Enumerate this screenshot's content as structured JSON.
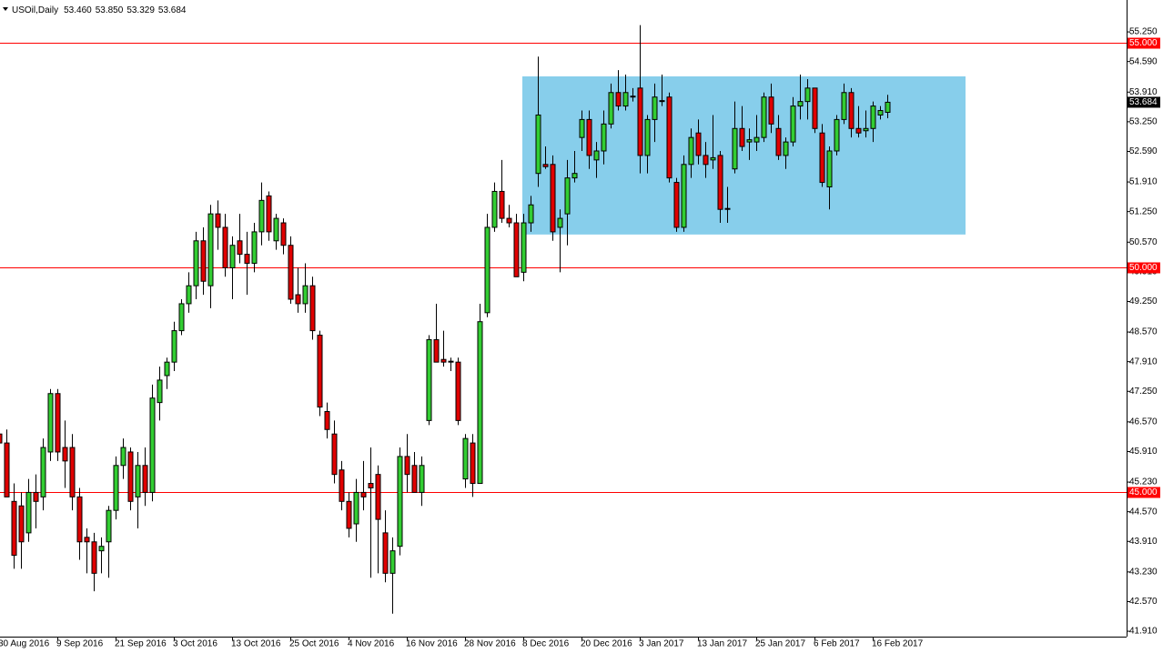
{
  "chart_data": {
    "type": "candlestick",
    "title": "USOil,Daily",
    "ohlc_labels": [
      "53.460",
      "53.850",
      "53.329",
      "53.684"
    ],
    "categories": [
      "30 Aug 2016",
      null,
      null,
      null,
      null,
      null,
      null,
      null,
      "9 Sep 2016",
      null,
      null,
      null,
      null,
      null,
      null,
      null,
      "21 Sep 2016",
      null,
      null,
      null,
      null,
      null,
      null,
      null,
      "3 Oct 2016",
      null,
      null,
      null,
      null,
      null,
      null,
      null,
      "13 Oct 2016",
      null,
      null,
      null,
      null,
      null,
      null,
      null,
      "25 Oct 2016",
      null,
      null,
      null,
      null,
      null,
      null,
      null,
      "4 Nov 2016",
      null,
      null,
      null,
      null,
      null,
      null,
      null,
      "16 Nov 2016",
      null,
      null,
      null,
      null,
      null,
      null,
      null,
      "28 Nov 2016",
      null,
      null,
      null,
      null,
      null,
      null,
      null,
      "8 Dec 2016",
      null,
      null,
      null,
      null,
      null,
      null,
      null,
      "20 Dec 2016",
      null,
      null,
      null,
      null,
      null,
      null,
      null,
      "3 Jan 2017",
      null,
      null,
      null,
      null,
      null,
      null,
      null,
      "13 Jan 2017",
      null,
      null,
      null,
      null,
      null,
      null,
      null,
      "25 Jan 2017",
      null,
      null,
      null,
      null,
      null,
      null,
      null,
      "6 Feb 2017",
      null,
      null,
      null,
      null,
      null,
      null,
      null,
      "16 Feb 2017",
      null,
      null
    ],
    "open": [
      46.3,
      46.1,
      44.8,
      44.7,
      44.1,
      45.0,
      44.9,
      45.9,
      47.2,
      46.0,
      46.0,
      44.9,
      44.0,
      43.9,
      43.7,
      43.9,
      44.6,
      45.6,
      45.9,
      44.9,
      45.6,
      45.0,
      47.0,
      47.6,
      47.9,
      48.6,
      49.2,
      49.6,
      50.6,
      49.6,
      51.2,
      50.9,
      50.0,
      50.6,
      50.3,
      50.1,
      50.8,
      51.6,
      50.6,
      51.0,
      50.5,
      49.4,
      49.2,
      49.6,
      48.5,
      46.8,
      46.3,
      45.5,
      44.8,
      44.3,
      45.0,
      45.2,
      45.4,
      44.1,
      43.2,
      43.8,
      45.8,
      45.6,
      45.0,
      46.6,
      48.4,
      47.96,
      47.9,
      47.9,
      45.3,
      46.1,
      45.2,
      49.0,
      50.9,
      51.7,
      51.1,
      51.0,
      49.9,
      51.0,
      52.1,
      52.3,
      52.3,
      50.9,
      51.2,
      52.0,
      52.9,
      53.3,
      52.4,
      52.6,
      53.2,
      53.9,
      53.6,
      53.8,
      54.0,
      52.5,
      53.3,
      53.7,
      53.8,
      51.9,
      50.9,
      52.3,
      53.0,
      52.5,
      52.4,
      52.5,
      51.3,
      52.2,
      53.1,
      52.8,
      52.8,
      52.9,
      53.8,
      53.1,
      52.5,
      52.8,
      53.6,
      53.7,
      54.0,
      53.0,
      51.8,
      52.6,
      53.3,
      53.9,
      53.1,
      53.05,
      53.1,
      53.4,
      53.46
    ],
    "high": [
      46.6,
      46.4,
      45.2,
      45.0,
      45.3,
      45.4,
      46.2,
      47.3,
      47.3,
      46.6,
      46.3,
      45.1,
      44.2,
      44.1,
      44.0,
      44.7,
      45.8,
      46.2,
      46.0,
      45.9,
      46.0,
      47.4,
      47.8,
      48.0,
      48.8,
      49.3,
      49.9,
      50.8,
      50.9,
      51.4,
      51.5,
      51.2,
      50.7,
      51.2,
      50.8,
      51.0,
      51.9,
      51.7,
      51.2,
      51.1,
      50.7,
      50.0,
      50.1,
      49.8,
      48.6,
      47.0,
      46.6,
      45.7,
      45.0,
      45.3,
      45.7,
      46.0,
      45.6,
      44.6,
      44.0,
      46.0,
      46.3,
      45.9,
      45.8,
      48.5,
      49.2,
      48.6,
      48.0,
      48.0,
      46.3,
      46.3,
      49.2,
      51.2,
      51.9,
      52.4,
      51.4,
      51.2,
      51.2,
      51.6,
      54.7,
      52.7,
      52.5,
      51.3,
      52.4,
      52.6,
      53.5,
      53.5,
      52.8,
      53.5,
      54.1,
      54.4,
      54.3,
      54.0,
      55.4,
      53.4,
      54.1,
      54.3,
      53.9,
      52.0,
      52.5,
      53.1,
      53.3,
      52.8,
      53.4,
      52.6,
      51.8,
      53.7,
      53.6,
      53.1,
      53.4,
      53.9,
      54.1,
      53.4,
      52.9,
      53.8,
      54.3,
      54.2,
      54.0,
      53.2,
      52.7,
      53.4,
      54.1,
      54.0,
      53.6,
      53.5,
      53.7,
      53.6,
      53.85
    ],
    "low": [
      45.9,
      44.9,
      43.3,
      43.3,
      43.9,
      44.2,
      44.6,
      45.7,
      45.7,
      45.1,
      44.6,
      43.5,
      43.2,
      42.8,
      43.2,
      43.1,
      44.4,
      45.3,
      44.6,
      44.2,
      44.7,
      44.8,
      46.6,
      47.3,
      47.7,
      48.5,
      49.0,
      49.3,
      49.4,
      49.1,
      50.4,
      49.8,
      49.3,
      50.1,
      49.4,
      49.9,
      50.5,
      50.6,
      50.4,
      50.3,
      49.2,
      49.0,
      49.0,
      48.4,
      46.7,
      46.2,
      45.2,
      44.6,
      44.0,
      43.9,
      44.6,
      43.1,
      43.2,
      43.0,
      42.3,
      43.6,
      45.0,
      45.0,
      44.7,
      46.5,
      47.9,
      47.8,
      47.7,
      46.5,
      45.1,
      44.9,
      45.2,
      48.9,
      50.8,
      51.0,
      50.9,
      49.8,
      49.7,
      50.8,
      51.8,
      52.2,
      50.6,
      49.9,
      50.5,
      51.9,
      52.6,
      52.2,
      52.0,
      52.3,
      53.1,
      53.5,
      53.5,
      53.7,
      52.1,
      52.1,
      52.8,
      53.6,
      51.9,
      50.8,
      50.8,
      52.0,
      52.3,
      52.0,
      52.2,
      51.0,
      51.0,
      52.1,
      52.6,
      52.4,
      52.6,
      52.8,
      53.0,
      52.4,
      52.2,
      52.7,
      53.3,
      53.3,
      53.0,
      51.8,
      51.3,
      52.5,
      53.2,
      52.9,
      52.9,
      52.9,
      52.8,
      53.3,
      53.329
    ],
    "close": [
      46.1,
      44.9,
      43.6,
      43.9,
      45.0,
      44.8,
      46.0,
      47.2,
      45.9,
      45.7,
      44.9,
      43.9,
      43.9,
      43.2,
      43.8,
      44.6,
      45.6,
      46.0,
      44.8,
      45.6,
      45.0,
      47.1,
      47.5,
      47.9,
      48.6,
      49.2,
      49.6,
      50.6,
      49.7,
      51.2,
      50.9,
      50.0,
      50.5,
      50.3,
      50.1,
      50.8,
      51.5,
      50.8,
      51.1,
      50.5,
      49.3,
      49.2,
      49.6,
      48.6,
      46.9,
      46.4,
      45.4,
      44.8,
      44.2,
      45.0,
      44.9,
      45.1,
      44.4,
      43.2,
      43.7,
      45.8,
      45.4,
      45.0,
      45.6,
      48.4,
      47.9,
      47.9,
      47.92,
      46.6,
      46.2,
      45.2,
      48.8,
      50.9,
      51.7,
      51.1,
      51.0,
      49.8,
      51.0,
      51.4,
      53.4,
      52.25,
      50.8,
      51.1,
      52.0,
      52.1,
      53.3,
      52.5,
      52.6,
      53.2,
      53.9,
      53.6,
      53.9,
      53.82,
      52.5,
      53.3,
      53.8,
      53.72,
      52.0,
      50.9,
      52.3,
      52.9,
      52.5,
      52.3,
      52.45,
      51.3,
      51.32,
      53.1,
      52.7,
      52.85,
      52.9,
      53.8,
      53.2,
      52.5,
      52.8,
      53.6,
      53.7,
      54.0,
      53.1,
      51.9,
      52.6,
      53.3,
      53.9,
      53.1,
      53.0,
      53.1,
      53.6,
      53.5,
      53.684
    ],
    "up_color": "#32cd32",
    "down_color": "#e00000",
    "ylim": [
      41.79,
      55.96
    ],
    "yticks": [
      {
        "value": 55.25,
        "label": "55.250"
      },
      {
        "value": 54.59,
        "label": "54.590"
      },
      {
        "value": 53.91,
        "label": "53.910"
      },
      {
        "value": 53.25,
        "label": "53.250"
      },
      {
        "value": 52.59,
        "label": "52.590"
      },
      {
        "value": 51.91,
        "label": "51.910"
      },
      {
        "value": 51.25,
        "label": "51.250"
      },
      {
        "value": 50.57,
        "label": "50.570"
      },
      {
        "value": 49.91,
        "label": "49.910"
      },
      {
        "value": 49.25,
        "label": "49.250"
      },
      {
        "value": 48.57,
        "label": "48.570"
      },
      {
        "value": 47.91,
        "label": "47.910"
      },
      {
        "value": 47.25,
        "label": "47.250"
      },
      {
        "value": 46.57,
        "label": "46.570"
      },
      {
        "value": 45.91,
        "label": "45.910"
      },
      {
        "value": 45.23,
        "label": "45.230"
      },
      {
        "value": 44.57,
        "label": "44.570"
      },
      {
        "value": 43.91,
        "label": "43.910"
      },
      {
        "value": 43.23,
        "label": "43.230"
      },
      {
        "value": 42.57,
        "label": "42.570"
      },
      {
        "value": 41.91,
        "label": "41.910"
      }
    ],
    "levels": [
      {
        "value": 55,
        "label": "55.000"
      },
      {
        "value": 50,
        "label": "50.000"
      },
      {
        "value": 45,
        "label": "45.000"
      }
    ],
    "level_color": "#ff0000",
    "zone": {
      "top": 54.26,
      "bottom": 50.74,
      "color": "#87ceeb"
    }
  }
}
